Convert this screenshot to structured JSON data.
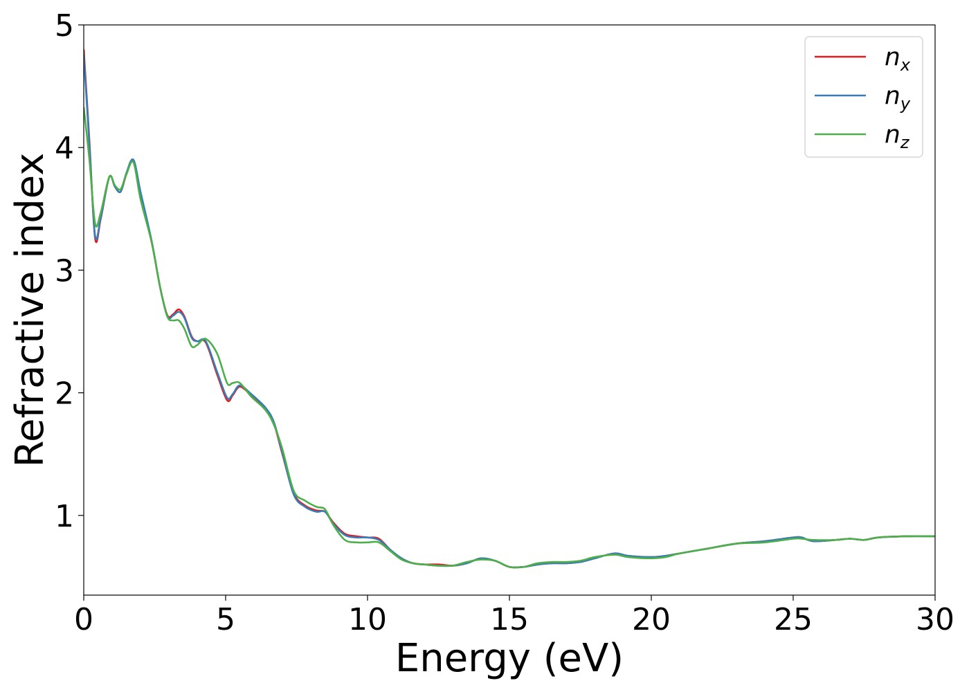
{
  "chart_data": {
    "type": "line",
    "title": "",
    "xlabel": "Energy (eV)",
    "ylabel": "Refractive index",
    "xlim": [
      0,
      30
    ],
    "ylim": [
      0.35,
      5.0
    ],
    "xticks": [
      0,
      5,
      10,
      15,
      20,
      25,
      30
    ],
    "yticks": [
      1,
      2,
      3,
      4,
      5
    ],
    "grid": false,
    "legend_position": "top-right",
    "series": [
      {
        "name": "n_x",
        "label_main": "n",
        "label_sub": "x",
        "color": "#e41a1c",
        "points": [
          [
            0.0,
            4.8
          ],
          [
            0.2,
            4.05
          ],
          [
            0.4,
            3.26
          ],
          [
            0.6,
            3.42
          ],
          [
            0.9,
            3.76
          ],
          [
            1.1,
            3.68
          ],
          [
            1.3,
            3.64
          ],
          [
            1.5,
            3.78
          ],
          [
            1.75,
            3.89
          ],
          [
            2.0,
            3.62
          ],
          [
            2.4,
            3.22
          ],
          [
            2.7,
            2.85
          ],
          [
            2.95,
            2.63
          ],
          [
            3.15,
            2.64
          ],
          [
            3.35,
            2.68
          ],
          [
            3.55,
            2.62
          ],
          [
            3.8,
            2.46
          ],
          [
            4.0,
            2.42
          ],
          [
            4.3,
            2.41
          ],
          [
            4.7,
            2.15
          ],
          [
            5.05,
            1.94
          ],
          [
            5.25,
            1.98
          ],
          [
            5.5,
            2.05
          ],
          [
            5.9,
            1.98
          ],
          [
            6.4,
            1.87
          ],
          [
            6.7,
            1.75
          ],
          [
            7.0,
            1.5
          ],
          [
            7.4,
            1.18
          ],
          [
            7.8,
            1.08
          ],
          [
            8.2,
            1.04
          ],
          [
            8.5,
            1.03
          ],
          [
            8.8,
            0.94
          ],
          [
            9.2,
            0.85
          ],
          [
            9.6,
            0.83
          ],
          [
            10.0,
            0.82
          ],
          [
            10.4,
            0.81
          ],
          [
            10.8,
            0.72
          ],
          [
            11.2,
            0.65
          ],
          [
            11.6,
            0.61
          ],
          [
            12.0,
            0.6
          ],
          [
            12.5,
            0.6
          ],
          [
            13.0,
            0.59
          ],
          [
            13.5,
            0.61
          ],
          [
            14.0,
            0.65
          ],
          [
            14.5,
            0.63
          ],
          [
            15.0,
            0.58
          ],
          [
            15.5,
            0.58
          ],
          [
            16.0,
            0.6
          ],
          [
            16.5,
            0.61
          ],
          [
            17.0,
            0.61
          ],
          [
            17.5,
            0.62
          ],
          [
            18.0,
            0.65
          ],
          [
            18.7,
            0.69
          ],
          [
            19.2,
            0.67
          ],
          [
            20.0,
            0.66
          ],
          [
            20.5,
            0.67
          ],
          [
            21.0,
            0.69
          ],
          [
            22.0,
            0.73
          ],
          [
            23.0,
            0.77
          ],
          [
            24.0,
            0.79
          ],
          [
            25.0,
            0.82
          ],
          [
            25.3,
            0.82
          ],
          [
            25.7,
            0.79
          ],
          [
            26.5,
            0.8
          ],
          [
            27.0,
            0.81
          ],
          [
            27.5,
            0.8
          ],
          [
            28.0,
            0.82
          ],
          [
            29.0,
            0.83
          ],
          [
            30.0,
            0.83
          ]
        ]
      },
      {
        "name": "n_y",
        "label_main": "n",
        "label_sub": "y",
        "color": "#377eb8",
        "points": [
          [
            0.0,
            4.76
          ],
          [
            0.2,
            4.02
          ],
          [
            0.4,
            3.28
          ],
          [
            0.6,
            3.43
          ],
          [
            0.9,
            3.76
          ],
          [
            1.1,
            3.68
          ],
          [
            1.3,
            3.64
          ],
          [
            1.5,
            3.79
          ],
          [
            1.75,
            3.9
          ],
          [
            2.0,
            3.64
          ],
          [
            2.4,
            3.23
          ],
          [
            2.7,
            2.85
          ],
          [
            2.95,
            2.62
          ],
          [
            3.15,
            2.63
          ],
          [
            3.35,
            2.66
          ],
          [
            3.55,
            2.61
          ],
          [
            3.8,
            2.45
          ],
          [
            4.0,
            2.42
          ],
          [
            4.3,
            2.42
          ],
          [
            4.7,
            2.17
          ],
          [
            5.05,
            1.96
          ],
          [
            5.25,
            1.99
          ],
          [
            5.5,
            2.06
          ],
          [
            5.9,
            1.99
          ],
          [
            6.4,
            1.88
          ],
          [
            6.7,
            1.76
          ],
          [
            7.0,
            1.51
          ],
          [
            7.4,
            1.17
          ],
          [
            7.8,
            1.07
          ],
          [
            8.2,
            1.03
          ],
          [
            8.5,
            1.03
          ],
          [
            8.8,
            0.93
          ],
          [
            9.2,
            0.84
          ],
          [
            9.6,
            0.82
          ],
          [
            10.0,
            0.82
          ],
          [
            10.4,
            0.8
          ],
          [
            10.8,
            0.72
          ],
          [
            11.2,
            0.65
          ],
          [
            11.6,
            0.61
          ],
          [
            12.0,
            0.6
          ],
          [
            12.5,
            0.59
          ],
          [
            13.0,
            0.59
          ],
          [
            13.5,
            0.61
          ],
          [
            14.0,
            0.65
          ],
          [
            14.5,
            0.63
          ],
          [
            15.0,
            0.58
          ],
          [
            15.5,
            0.58
          ],
          [
            16.0,
            0.6
          ],
          [
            16.5,
            0.61
          ],
          [
            17.0,
            0.61
          ],
          [
            17.5,
            0.62
          ],
          [
            18.0,
            0.65
          ],
          [
            18.7,
            0.69
          ],
          [
            19.2,
            0.67
          ],
          [
            20.0,
            0.66
          ],
          [
            20.5,
            0.67
          ],
          [
            21.0,
            0.69
          ],
          [
            22.0,
            0.73
          ],
          [
            23.0,
            0.77
          ],
          [
            24.0,
            0.79
          ],
          [
            25.0,
            0.82
          ],
          [
            25.3,
            0.82
          ],
          [
            25.7,
            0.79
          ],
          [
            26.5,
            0.8
          ],
          [
            27.0,
            0.81
          ],
          [
            27.5,
            0.8
          ],
          [
            28.0,
            0.82
          ],
          [
            29.0,
            0.83
          ],
          [
            30.0,
            0.83
          ]
        ]
      },
      {
        "name": "n_z",
        "label_main": "n",
        "label_sub": "z",
        "color": "#4daf4a",
        "points": [
          [
            0.0,
            4.33
          ],
          [
            0.2,
            3.9
          ],
          [
            0.4,
            3.38
          ],
          [
            0.6,
            3.47
          ],
          [
            0.9,
            3.76
          ],
          [
            1.1,
            3.69
          ],
          [
            1.3,
            3.66
          ],
          [
            1.5,
            3.78
          ],
          [
            1.75,
            3.88
          ],
          [
            2.0,
            3.58
          ],
          [
            2.4,
            3.22
          ],
          [
            2.7,
            2.85
          ],
          [
            2.95,
            2.62
          ],
          [
            3.15,
            2.59
          ],
          [
            3.35,
            2.59
          ],
          [
            3.55,
            2.52
          ],
          [
            3.8,
            2.38
          ],
          [
            4.0,
            2.39
          ],
          [
            4.3,
            2.44
          ],
          [
            4.7,
            2.32
          ],
          [
            5.05,
            2.08
          ],
          [
            5.25,
            2.08
          ],
          [
            5.5,
            2.08
          ],
          [
            5.9,
            1.97
          ],
          [
            6.4,
            1.86
          ],
          [
            6.7,
            1.74
          ],
          [
            7.0,
            1.54
          ],
          [
            7.4,
            1.2
          ],
          [
            7.8,
            1.12
          ],
          [
            8.2,
            1.07
          ],
          [
            8.5,
            1.05
          ],
          [
            8.8,
            0.92
          ],
          [
            9.2,
            0.8
          ],
          [
            9.6,
            0.78
          ],
          [
            10.0,
            0.78
          ],
          [
            10.4,
            0.78
          ],
          [
            10.8,
            0.71
          ],
          [
            11.2,
            0.64
          ],
          [
            11.6,
            0.61
          ],
          [
            12.0,
            0.6
          ],
          [
            12.5,
            0.59
          ],
          [
            13.0,
            0.59
          ],
          [
            13.5,
            0.62
          ],
          [
            14.0,
            0.64
          ],
          [
            14.5,
            0.63
          ],
          [
            15.0,
            0.58
          ],
          [
            15.5,
            0.58
          ],
          [
            16.0,
            0.61
          ],
          [
            16.5,
            0.62
          ],
          [
            17.0,
            0.62
          ],
          [
            17.5,
            0.63
          ],
          [
            18.0,
            0.66
          ],
          [
            18.7,
            0.68
          ],
          [
            19.2,
            0.66
          ],
          [
            20.0,
            0.65
          ],
          [
            20.5,
            0.66
          ],
          [
            21.0,
            0.69
          ],
          [
            22.0,
            0.73
          ],
          [
            23.0,
            0.77
          ],
          [
            24.0,
            0.78
          ],
          [
            25.0,
            0.81
          ],
          [
            25.3,
            0.81
          ],
          [
            25.7,
            0.8
          ],
          [
            26.5,
            0.8
          ],
          [
            27.0,
            0.81
          ],
          [
            27.5,
            0.8
          ],
          [
            28.0,
            0.82
          ],
          [
            29.0,
            0.83
          ],
          [
            30.0,
            0.83
          ]
        ]
      }
    ]
  }
}
